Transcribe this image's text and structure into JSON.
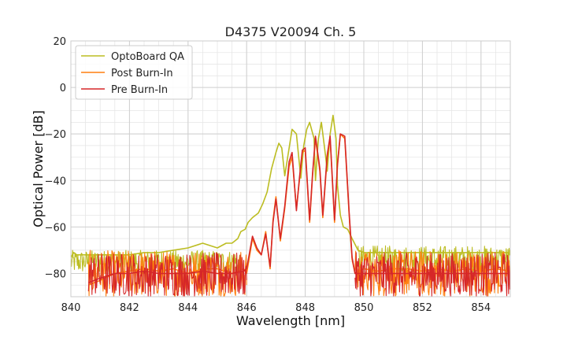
{
  "chart_data": {
    "type": "line",
    "title": "D4375 V20094 Ch. 5",
    "xlabel": "Wavelength [nm]",
    "ylabel": "Optical Power [dB]",
    "xlim": [
      840,
      855
    ],
    "ylim": [
      -90,
      20
    ],
    "xticks": [
      840,
      842,
      844,
      846,
      848,
      850,
      852,
      854
    ],
    "yticks": [
      20,
      0,
      -20,
      -40,
      -60,
      -80
    ],
    "ytick_labels": [
      "20",
      "0",
      "−20",
      "−40",
      "−60",
      "−80"
    ],
    "grid": true,
    "legend_position": "top-left",
    "series": [
      {
        "name": "OptoBoard QA",
        "color": "#bcbd22",
        "points": [
          [
            840.0,
            -73
          ],
          [
            840.1,
            -71
          ],
          [
            840.2,
            -72
          ],
          [
            840.5,
            -72
          ],
          [
            841.0,
            -72
          ],
          [
            841.5,
            -72
          ],
          [
            842.0,
            -72
          ],
          [
            842.5,
            -71
          ],
          [
            843.0,
            -71
          ],
          [
            843.5,
            -70
          ],
          [
            844.0,
            -69
          ],
          [
            844.5,
            -67
          ],
          [
            845.0,
            -69
          ],
          [
            845.3,
            -67
          ],
          [
            845.5,
            -67
          ],
          [
            845.7,
            -65
          ],
          [
            845.8,
            -62
          ],
          [
            845.95,
            -61
          ],
          [
            846.05,
            -58
          ],
          [
            846.2,
            -56
          ],
          [
            846.4,
            -54
          ],
          [
            846.55,
            -50
          ],
          [
            846.7,
            -45
          ],
          [
            846.85,
            -35
          ],
          [
            847.0,
            -28
          ],
          [
            847.1,
            -24
          ],
          [
            847.2,
            -26
          ],
          [
            847.3,
            -38
          ],
          [
            847.4,
            -30
          ],
          [
            847.55,
            -18
          ],
          [
            847.7,
            -20
          ],
          [
            847.85,
            -39
          ],
          [
            847.95,
            -25
          ],
          [
            848.05,
            -18
          ],
          [
            848.15,
            -15
          ],
          [
            848.3,
            -22
          ],
          [
            848.35,
            -40
          ],
          [
            848.45,
            -22
          ],
          [
            848.55,
            -15
          ],
          [
            848.7,
            -30
          ],
          [
            848.75,
            -36
          ],
          [
            848.85,
            -20
          ],
          [
            848.95,
            -12
          ],
          [
            849.05,
            -22
          ],
          [
            849.1,
            -42
          ],
          [
            849.2,
            -55
          ],
          [
            849.3,
            -60
          ],
          [
            849.45,
            -61
          ],
          [
            849.6,
            -65
          ],
          [
            849.8,
            -70
          ],
          [
            850.0,
            -71
          ],
          [
            850.5,
            -71
          ],
          [
            851.0,
            -71
          ],
          [
            851.5,
            -71
          ],
          [
            852.0,
            -71
          ],
          [
            852.5,
            -71
          ],
          [
            853.0,
            -71
          ],
          [
            853.5,
            -71
          ],
          [
            854.0,
            -71
          ],
          [
            854.5,
            -71
          ],
          [
            855.0,
            -71
          ]
        ]
      },
      {
        "name": "Post Burn-In",
        "color": "#ff7f0e",
        "points": [
          [
            840.6,
            -85
          ],
          [
            841.0,
            -83
          ],
          [
            841.5,
            -80
          ],
          [
            842.0,
            -79
          ],
          [
            842.5,
            -78
          ],
          [
            843.0,
            -79
          ],
          [
            843.5,
            -78
          ],
          [
            844.0,
            -80
          ],
          [
            844.5,
            -78
          ],
          [
            845.0,
            -78
          ],
          [
            845.5,
            -80
          ],
          [
            845.9,
            -78
          ],
          [
            846.0,
            -80
          ],
          [
            846.2,
            -65
          ],
          [
            846.35,
            -70
          ],
          [
            846.5,
            -72
          ],
          [
            846.65,
            -62
          ],
          [
            846.8,
            -78
          ],
          [
            846.9,
            -57
          ],
          [
            847.0,
            -47
          ],
          [
            847.15,
            -66
          ],
          [
            847.3,
            -52
          ],
          [
            847.45,
            -34
          ],
          [
            847.55,
            -30
          ],
          [
            847.7,
            -52
          ],
          [
            847.8,
            -40
          ],
          [
            847.9,
            -28
          ],
          [
            848.0,
            -27
          ],
          [
            848.15,
            -58
          ],
          [
            848.25,
            -38
          ],
          [
            848.35,
            -22
          ],
          [
            848.5,
            -36
          ],
          [
            848.6,
            -56
          ],
          [
            848.75,
            -30
          ],
          [
            848.85,
            -22
          ],
          [
            849.0,
            -58
          ],
          [
            849.1,
            -34
          ],
          [
            849.2,
            -20
          ],
          [
            849.35,
            -22
          ],
          [
            849.5,
            -55
          ],
          [
            849.6,
            -74
          ],
          [
            849.7,
            -80
          ],
          [
            850.0,
            -78
          ],
          [
            850.5,
            -79
          ],
          [
            851.0,
            -78
          ],
          [
            851.5,
            -78
          ],
          [
            852.0,
            -79
          ],
          [
            852.5,
            -78
          ],
          [
            853.0,
            -79
          ],
          [
            853.5,
            -78
          ],
          [
            854.0,
            -79
          ],
          [
            854.5,
            -78
          ],
          [
            855.0,
            -79
          ]
        ]
      },
      {
        "name": "Pre Burn-In",
        "color": "#d62728",
        "points": [
          [
            840.6,
            -84
          ],
          [
            841.0,
            -82
          ],
          [
            841.5,
            -80
          ],
          [
            842.0,
            -80
          ],
          [
            842.5,
            -79
          ],
          [
            843.0,
            -80
          ],
          [
            843.5,
            -80
          ],
          [
            844.0,
            -80
          ],
          [
            844.5,
            -79
          ],
          [
            845.0,
            -80
          ],
          [
            845.5,
            -80
          ],
          [
            845.9,
            -79
          ],
          [
            846.0,
            -78
          ],
          [
            846.2,
            -64
          ],
          [
            846.35,
            -69
          ],
          [
            846.5,
            -72
          ],
          [
            846.65,
            -63
          ],
          [
            846.8,
            -77
          ],
          [
            846.9,
            -58
          ],
          [
            847.0,
            -48
          ],
          [
            847.15,
            -65
          ],
          [
            847.3,
            -51
          ],
          [
            847.45,
            -32
          ],
          [
            847.55,
            -28
          ],
          [
            847.7,
            -53
          ],
          [
            847.8,
            -39
          ],
          [
            847.9,
            -27
          ],
          [
            848.0,
            -26
          ],
          [
            848.15,
            -57
          ],
          [
            848.25,
            -37
          ],
          [
            848.35,
            -21
          ],
          [
            848.5,
            -35
          ],
          [
            848.6,
            -55
          ],
          [
            848.75,
            -29
          ],
          [
            848.85,
            -21
          ],
          [
            849.0,
            -57
          ],
          [
            849.1,
            -33
          ],
          [
            849.2,
            -20
          ],
          [
            849.35,
            -21
          ],
          [
            849.5,
            -54
          ],
          [
            849.6,
            -73
          ],
          [
            849.7,
            -80
          ],
          [
            850.0,
            -80
          ],
          [
            850.5,
            -80
          ],
          [
            851.0,
            -80
          ],
          [
            851.5,
            -80
          ],
          [
            852.0,
            -80
          ],
          [
            852.5,
            -80
          ],
          [
            853.0,
            -80
          ],
          [
            853.5,
            -80
          ],
          [
            854.0,
            -80
          ],
          [
            854.5,
            -80
          ],
          [
            855.0,
            -80
          ]
        ]
      }
    ],
    "noise_bands": [
      {
        "series": 0,
        "x_start": 840.0,
        "x_end": 845.8,
        "low": -80,
        "high": -70
      },
      {
        "series": 0,
        "x_start": 849.8,
        "x_end": 855.0,
        "low": -80,
        "high": -68
      },
      {
        "series": 1,
        "x_start": 840.6,
        "x_end": 846.0,
        "low": -90,
        "high": -70
      },
      {
        "series": 1,
        "x_start": 849.7,
        "x_end": 855.0,
        "low": -90,
        "high": -70
      },
      {
        "series": 2,
        "x_start": 840.6,
        "x_end": 846.0,
        "low": -90,
        "high": -71
      },
      {
        "series": 2,
        "x_start": 849.7,
        "x_end": 855.0,
        "low": -90,
        "high": -71
      }
    ]
  }
}
